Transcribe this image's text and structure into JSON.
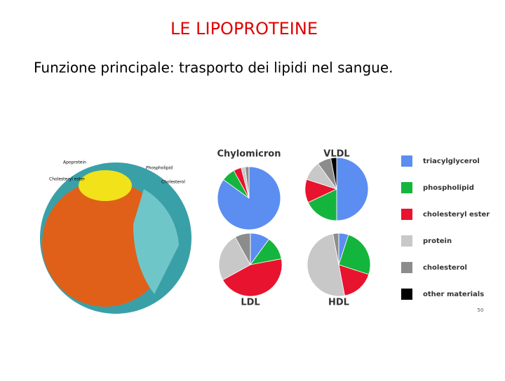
{
  "slide": {
    "title": "LE LIPOPROTEINE",
    "subtitle": "Funzione principale: trasporto dei lipidi nel sangue.",
    "illustration_labels": [
      "Apoprotein",
      "Cholesteryl ester",
      "Phospholipid",
      "Cholesterol"
    ],
    "page_number": "50"
  },
  "legend": {
    "names": [
      "triacylglycerol",
      "phospholipid",
      "cholesteryl ester",
      "protein",
      "cholesterol",
      "other materials"
    ],
    "colors": [
      "#5b8ef0",
      "#14b53c",
      "#e8132e",
      "#c8c8c8",
      "#8c8c8c",
      "#000000"
    ]
  },
  "chart_data": [
    {
      "type": "pie",
      "title": "Chylomicron",
      "values": [
        85,
        7,
        4,
        2,
        2,
        0
      ]
    },
    {
      "type": "pie",
      "title": "VLDL",
      "values": [
        50,
        18,
        12,
        10,
        7,
        3
      ]
    },
    {
      "type": "pie",
      "title": "LDL",
      "values": [
        10,
        12,
        45,
        25,
        8,
        0
      ]
    },
    {
      "type": "pie",
      "title": "HDL",
      "values": [
        5,
        25,
        17,
        50,
        3,
        0
      ]
    }
  ]
}
